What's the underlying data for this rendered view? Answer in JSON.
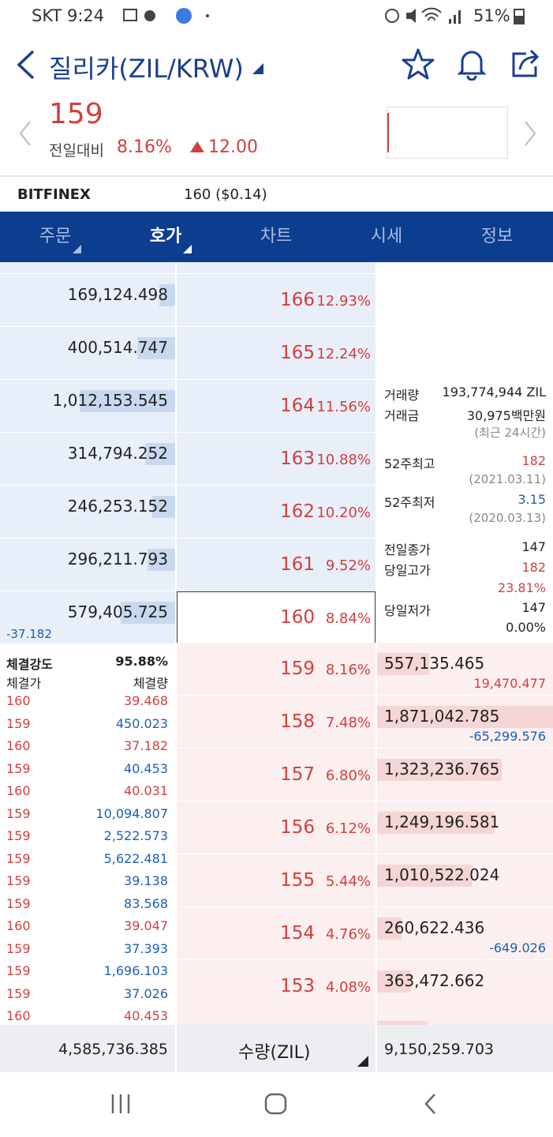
{
  "status_bar": {
    "carrier_time": "SKT 9:24",
    "battery": "51%"
  },
  "header": {
    "title": "질리카(ZIL/KRW)"
  },
  "quote": {
    "price": "159",
    "change_label": "전일대비",
    "change_rate": "8.16%",
    "change": "12.00"
  },
  "exchange": {
    "name": "BITFINEX",
    "price": "160 ($0.14)"
  },
  "tabs": [
    "주문",
    "호가",
    "차트",
    "시세",
    "정보"
  ],
  "asks": [
    {
      "quantity": "169,124.498",
      "price": "166",
      "rate": "12.93%"
    },
    {
      "quantity": "400,514.747",
      "price": "165",
      "rate": "12.24%"
    },
    {
      "quantity": "1,012,153.545",
      "price": "164",
      "rate": "11.56%"
    },
    {
      "quantity": "314,794.252",
      "price": "163",
      "rate": "10.88%"
    },
    {
      "quantity": "246,253.152",
      "price": "162",
      "rate": "10.20%"
    },
    {
      "quantity": "296,211.793",
      "price": "161",
      "rate": "9.52%"
    },
    {
      "quantity": "579,405.725",
      "price": "160",
      "rate": "8.84%",
      "change": "-37.182"
    }
  ],
  "bids": [
    {
      "price": "159",
      "rate": "8.16%",
      "quantity": "557,135.465",
      "change": "19,470.477"
    },
    {
      "price": "158",
      "rate": "7.48%",
      "quantity": "1,871,042.785",
      "change": "-65,299.576"
    },
    {
      "price": "157",
      "rate": "6.80%",
      "quantity": "1,323,236.765"
    },
    {
      "price": "156",
      "rate": "6.12%",
      "quantity": "1,249,196.581"
    },
    {
      "price": "155",
      "rate": "5.44%",
      "quantity": "1,010,522.024"
    },
    {
      "price": "154",
      "rate": "4.76%",
      "quantity": "260,622.436",
      "change": "-649.026"
    },
    {
      "price": "153",
      "rate": "4.08%",
      "quantity": "363,472.662"
    }
  ],
  "info": {
    "volume_label": "거래량",
    "volume": "193,774,944 ZIL",
    "amount_label": "거래금",
    "amount": "30,975백만원",
    "period_note": "(최근 24시간)",
    "high52_label": "52주최고",
    "high52": "182",
    "high52_date": "(2021.03.11)",
    "low52_label": "52주최저",
    "low52": "3.15",
    "low52_date": "(2020.03.13)",
    "prev_close_label": "전일종가",
    "prev_close": "147",
    "day_high_label": "당일고가",
    "day_high": "182",
    "day_high_rate": "23.81%",
    "day_low_label": "당일저가",
    "day_low": "147",
    "day_low_rate": "0.00%"
  },
  "trades": {
    "strength_label": "체결강도",
    "strength": "95.88%",
    "price_header": "체결가",
    "quantity_header": "체결량",
    "rows": [
      {
        "price": "160",
        "quantity": "39.468",
        "color": "#d23f3f"
      },
      {
        "price": "159",
        "quantity": "450.023",
        "color": "#1d5fb4"
      },
      {
        "price": "160",
        "quantity": "37.182",
        "color": "#d23f3f"
      },
      {
        "price": "159",
        "quantity": "40.453",
        "color": "#1d5fb4"
      },
      {
        "price": "160",
        "quantity": "40.031",
        "color": "#d23f3f"
      },
      {
        "price": "159",
        "quantity": "10,094.807",
        "color": "#1d5fb4"
      },
      {
        "price": "159",
        "quantity": "2,522.573",
        "color": "#1d5fb4"
      },
      {
        "price": "159",
        "quantity": "5,622.481",
        "color": "#1d5fb4"
      },
      {
        "price": "159",
        "quantity": "39.138",
        "color": "#1d5fb4"
      },
      {
        "price": "159",
        "quantity": "83.568",
        "color": "#1d5fb4"
      },
      {
        "price": "160",
        "quantity": "39.047",
        "color": "#d23f3f"
      },
      {
        "price": "159",
        "quantity": "37.393",
        "color": "#1d5fb4"
      },
      {
        "price": "159",
        "quantity": "1,696.103",
        "color": "#1d5fb4"
      },
      {
        "price": "159",
        "quantity": "37.026",
        "color": "#1d5fb4"
      },
      {
        "price": "160",
        "quantity": "40.453",
        "color": "#d23f3f"
      }
    ]
  },
  "footer": {
    "ask_total": "4,585,736.385",
    "unit": "수량(ZIL)",
    "bid_total": "9,150,259.703"
  }
}
